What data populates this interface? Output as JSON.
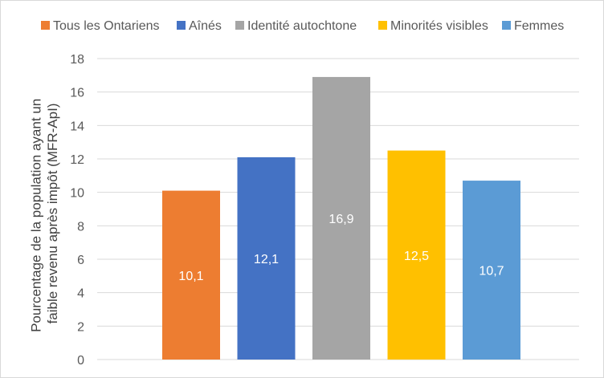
{
  "chart_data": {
    "type": "bar",
    "categories": [
      "Tous les Ontariens",
      "Aînés",
      "Identité autochtone",
      "Minorités visibles",
      "Femmes"
    ],
    "values": [
      10.1,
      12.1,
      16.9,
      12.5,
      10.7
    ],
    "value_labels": [
      "10,1",
      "12,1",
      "16,9",
      "12,5",
      "10,7"
    ],
    "colors": [
      "#ED7D31",
      "#4472C4",
      "#A5A5A5",
      "#FFC000",
      "#5B9BD5"
    ],
    "title": "",
    "xlabel": "",
    "ylabel_lines": [
      "Pourcentage de la population ayant un",
      "faible revenu après impôt (MFR-ApI)"
    ],
    "ylim": [
      0,
      18
    ],
    "yticks": [
      0,
      2,
      4,
      6,
      8,
      10,
      12,
      14,
      16,
      18
    ],
    "grid": true,
    "legend": "top",
    "legend_entries": [
      "Tous les Ontariens",
      "Aînés",
      "Identité autochtone",
      "Minorités visibles",
      "Femmes"
    ]
  }
}
